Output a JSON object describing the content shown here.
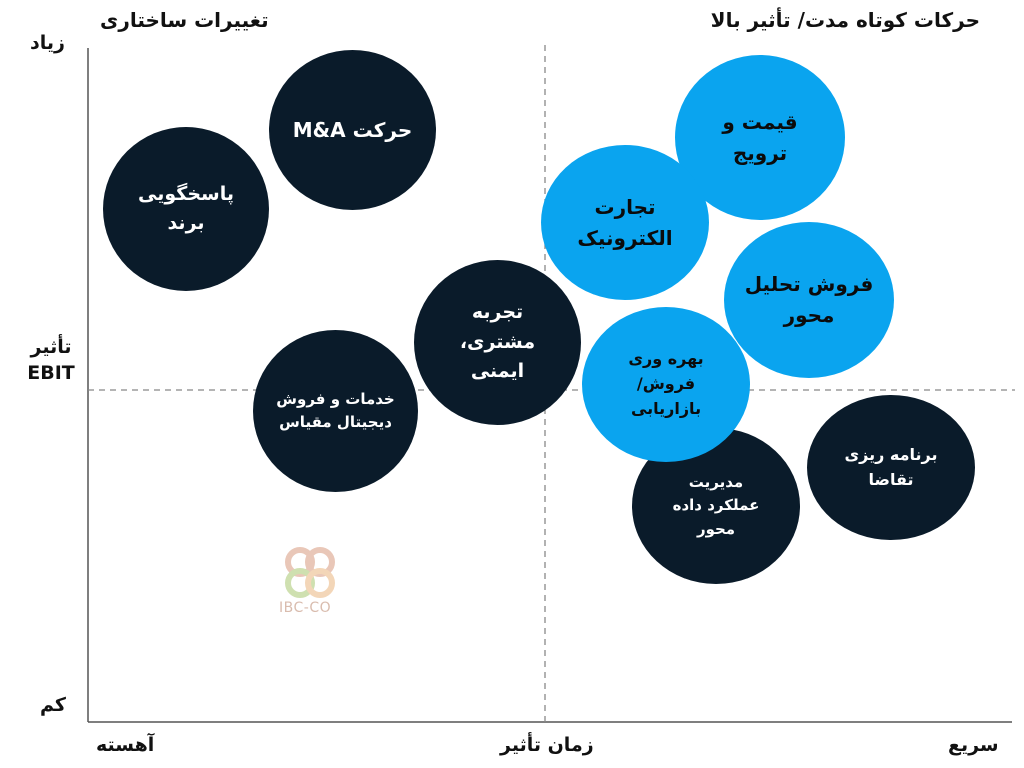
{
  "titles": {
    "left": "تغییرات ساختاری",
    "right": "حرکات کوتاه مدت/ تأثیر بالا"
  },
  "y_axis": {
    "high": "زیاد",
    "mid_line1": "تأثیر",
    "mid_line2": "EBIT",
    "low": "کم"
  },
  "x_axis": {
    "slow": "آهسته",
    "mid": "زمان تأثیر",
    "fast": "سریع"
  },
  "bubbles": {
    "brand": "پاسخگویی\nبرند",
    "ma": "حرکت M&A",
    "services": "خدمات و فروش\nدیجیتال مقیاس",
    "cx": "تجربه\nمشتری،\nایمنی",
    "pricing": "قیمت و\nترویج",
    "ecommerce": "تجارت\nالکترونیک",
    "analytics": "فروش تحلیل\nمحور",
    "productivity": "بهره وری\nفروش/\nبازاریابی",
    "data_perf": "مدیریت\nعملکرد داده\nمحور",
    "demand": "برنامه ریزی\nتقاضا"
  },
  "logo": {
    "text": "IBC-CO"
  },
  "colors": {
    "dark": "#0a1b2a",
    "light": "#0aa4ef"
  }
}
